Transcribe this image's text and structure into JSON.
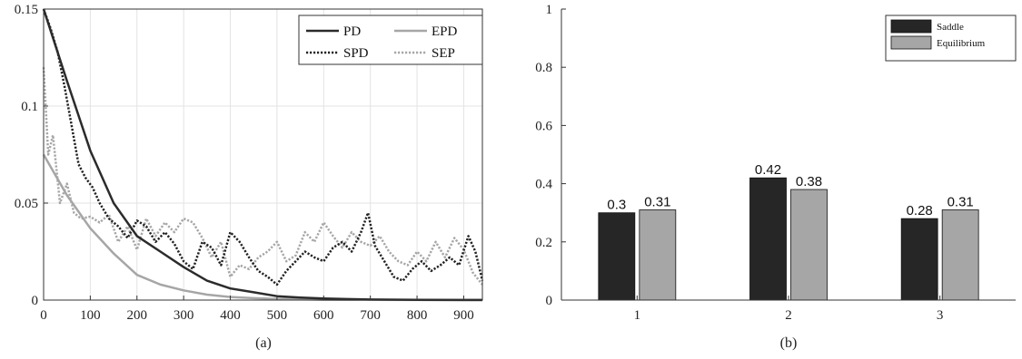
{
  "chart_data": [
    {
      "type": "line",
      "caption": "(a)",
      "xlim": [
        0,
        940
      ],
      "ylim": [
        0,
        0.15
      ],
      "xticks": [
        0,
        100,
        200,
        300,
        400,
        500,
        600,
        700,
        800,
        900
      ],
      "yticks": [
        0,
        0.05,
        0.1,
        0.15
      ],
      "xtick_labels": [
        "0",
        "100",
        "200",
        "300",
        "400",
        "500",
        "600",
        "700",
        "800",
        "900"
      ],
      "ytick_labels": [
        "0",
        "0.05",
        "0.1",
        "0.15"
      ],
      "grid": true,
      "legend_position": "top-right",
      "series": [
        {
          "name": "PD",
          "color": "#2b2b2b",
          "style": "solid",
          "x": [
            0,
            50,
            100,
            150,
            200,
            250,
            300,
            350,
            400,
            450,
            500,
            550,
            600,
            650,
            700,
            800,
            900,
            940
          ],
          "y": [
            0.15,
            0.113,
            0.077,
            0.05,
            0.033,
            0.025,
            0.017,
            0.01,
            0.006,
            0.004,
            0.002,
            0.0013,
            0.0008,
            0.0005,
            0.0003,
            0.0001,
            5e-05,
            3e-05
          ]
        },
        {
          "name": "EPD",
          "color": "#a6a6a6",
          "style": "solid",
          "x": [
            0,
            50,
            100,
            150,
            200,
            250,
            300,
            350,
            400,
            450,
            500,
            600,
            700,
            800,
            900,
            940
          ],
          "y": [
            0.075,
            0.054,
            0.037,
            0.024,
            0.013,
            0.008,
            0.005,
            0.0028,
            0.0016,
            0.001,
            0.0006,
            0.0002,
            0.0001,
            5e-05,
            2e-05,
            1e-05
          ]
        },
        {
          "name": "SPD",
          "color": "#222222",
          "style": "dotted",
          "x": [
            0,
            15,
            30,
            45,
            60,
            75,
            90,
            105,
            120,
            140,
            160,
            180,
            200,
            220,
            240,
            260,
            280,
            300,
            320,
            340,
            360,
            380,
            400,
            420,
            440,
            460,
            480,
            500,
            520,
            540,
            560,
            580,
            600,
            620,
            640,
            660,
            680,
            695,
            710,
            730,
            750,
            770,
            790,
            810,
            830,
            850,
            870,
            890,
            910,
            925,
            940
          ],
          "y": [
            0.15,
            0.14,
            0.128,
            0.11,
            0.09,
            0.07,
            0.063,
            0.058,
            0.05,
            0.042,
            0.038,
            0.032,
            0.041,
            0.038,
            0.03,
            0.035,
            0.029,
            0.02,
            0.016,
            0.03,
            0.027,
            0.018,
            0.035,
            0.03,
            0.022,
            0.015,
            0.012,
            0.008,
            0.015,
            0.02,
            0.025,
            0.022,
            0.02,
            0.027,
            0.03,
            0.025,
            0.035,
            0.045,
            0.028,
            0.02,
            0.012,
            0.01,
            0.016,
            0.02,
            0.015,
            0.018,
            0.022,
            0.018,
            0.033,
            0.025,
            0.01
          ]
        },
        {
          "name": "SEP",
          "color": "#a6a6a6",
          "style": "dotted",
          "x": [
            0,
            10,
            20,
            35,
            50,
            65,
            80,
            100,
            120,
            140,
            160,
            180,
            200,
            220,
            240,
            260,
            280,
            300,
            320,
            340,
            360,
            380,
            400,
            420,
            440,
            460,
            480,
            500,
            520,
            540,
            560,
            580,
            600,
            620,
            640,
            660,
            680,
            700,
            720,
            740,
            760,
            780,
            800,
            820,
            840,
            860,
            880,
            900,
            920,
            940
          ],
          "y": [
            0.12,
            0.075,
            0.085,
            0.05,
            0.06,
            0.045,
            0.042,
            0.043,
            0.04,
            0.044,
            0.03,
            0.038,
            0.026,
            0.042,
            0.033,
            0.04,
            0.035,
            0.042,
            0.04,
            0.032,
            0.022,
            0.03,
            0.012,
            0.018,
            0.016,
            0.022,
            0.025,
            0.03,
            0.02,
            0.023,
            0.035,
            0.03,
            0.04,
            0.033,
            0.027,
            0.035,
            0.03,
            0.028,
            0.033,
            0.025,
            0.02,
            0.018,
            0.025,
            0.02,
            0.03,
            0.022,
            0.032,
            0.026,
            0.014,
            0.008
          ]
        }
      ]
    },
    {
      "type": "bar",
      "caption": "(b)",
      "categories": [
        "1",
        "2",
        "3"
      ],
      "ylim": [
        0,
        1
      ],
      "yticks": [
        0,
        0.2,
        0.4,
        0.6,
        0.8,
        1
      ],
      "ytick_labels": [
        "0",
        "0.2",
        "0.4",
        "0.6",
        "0.8",
        "1"
      ],
      "grid": false,
      "legend_position": "top-right",
      "series": [
        {
          "name": "Saddle",
          "color": "#262626",
          "values": [
            0.3,
            0.42,
            0.28
          ],
          "labels": [
            "0.3",
            "0.42",
            "0.28"
          ]
        },
        {
          "name": "Equilibrium",
          "color": "#a6a6a6",
          "values": [
            0.31,
            0.38,
            0.31
          ],
          "labels": [
            "0.31",
            "0.38",
            "0.31"
          ]
        }
      ]
    }
  ]
}
